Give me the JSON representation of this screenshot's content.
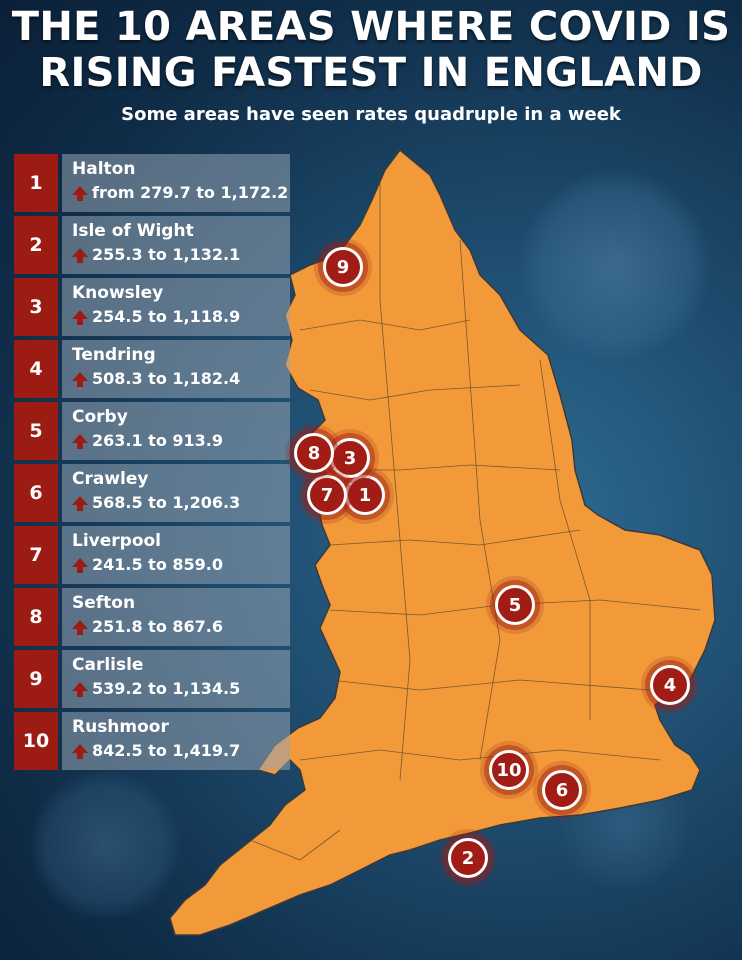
{
  "title": "THE 10 AREAS WHERE COVID IS RISING FASTEST IN ENGLAND",
  "subtitle": "Some areas have seen rates quadruple in a week",
  "colors": {
    "map_fill": "#f29a3a",
    "accent": "#9c1c13",
    "background": "#163e5e"
  },
  "areas": [
    {
      "rank": "1",
      "name": "Halton",
      "change": "from 279.7 to 1,172.2"
    },
    {
      "rank": "2",
      "name": "Isle of Wight",
      "change": "255.3 to 1,132.1"
    },
    {
      "rank": "3",
      "name": "Knowsley",
      "change": "254.5 to 1,118.9"
    },
    {
      "rank": "4",
      "name": "Tendring",
      "change": "508.3 to 1,182.4"
    },
    {
      "rank": "5",
      "name": "Corby",
      "change": "263.1 to 913.9"
    },
    {
      "rank": "6",
      "name": "Crawley",
      "change": "568.5 to 1,206.3"
    },
    {
      "rank": "7",
      "name": "Liverpool",
      "change": "241.5 to 859.0"
    },
    {
      "rank": "8",
      "name": "Sefton",
      "change": "251.8 to 867.6"
    },
    {
      "rank": "9",
      "name": "Carlisle",
      "change": "539.2 to 1,134.5"
    },
    {
      "rank": "10",
      "name": "Rushmoor",
      "change": "842.5 to 1,419.7"
    }
  ]
}
